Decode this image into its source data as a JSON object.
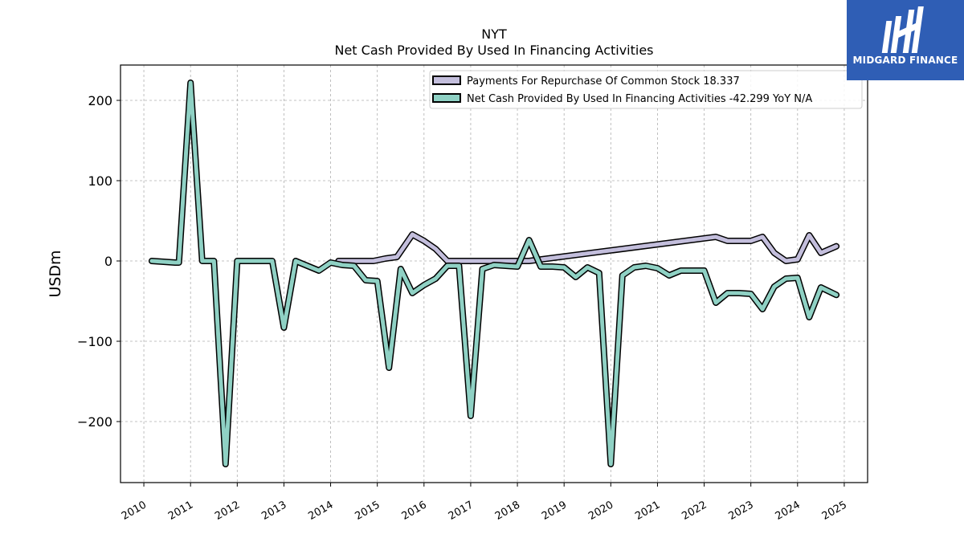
{
  "logo": {
    "text": "MIDGARD FINANCE"
  },
  "chart_data": {
    "type": "line",
    "title": "NYT",
    "subtitle": "Net Cash Provided By Used In Financing Activities",
    "xlabel": "",
    "ylabel": "USDm",
    "xlim": [
      2009.5,
      2025.5
    ],
    "ylim": [
      -276,
      244
    ],
    "xticks": [
      "2010",
      "2011",
      "2012",
      "2013",
      "2014",
      "2015",
      "2016",
      "2017",
      "2018",
      "2019",
      "2020",
      "2021",
      "2022",
      "2023",
      "2024",
      "2025"
    ],
    "yticks": [
      -200,
      -100,
      0,
      100,
      200
    ],
    "ytick_labels": [
      "−200",
      "−100",
      "0",
      "100",
      "200"
    ],
    "grid": true,
    "legend_position": "top-right",
    "series": [
      {
        "name": "Payments For Repurchase Of Common Stock",
        "legend_label": "Payments For Repurchase Of Common Stock  18.337",
        "color": "#c3bedc",
        "x": [
          2014.17,
          2014.42,
          2014.67,
          2014.92,
          2015.17,
          2015.42,
          2015.75,
          2016.0,
          2016.25,
          2016.5,
          2016.75,
          2017.0,
          2017.25,
          2017.5,
          2017.75,
          2018.0,
          2018.25,
          2022.25,
          2022.5,
          2022.75,
          2023.0,
          2023.25,
          2023.5,
          2023.75,
          2024.0,
          2024.25,
          2024.5,
          2024.83
        ],
        "y": [
          0,
          0,
          0,
          0,
          3,
          5,
          33,
          25,
          15,
          0,
          0,
          0,
          0,
          0,
          0,
          0,
          0,
          30,
          25,
          25,
          25,
          30,
          10,
          0,
          2,
          32,
          10,
          18.337
        ]
      },
      {
        "name": "Net Cash Provided By Used In Financing Activities",
        "legend_label": "Net Cash Provided By Used In Financing Activities  -42.299 YoY N/A",
        "color": "#8fd1c4",
        "x": [
          2010.17,
          2010.42,
          2010.67,
          2010.75,
          2011.0,
          2011.25,
          2011.5,
          2011.75,
          2012.0,
          2012.25,
          2012.5,
          2012.75,
          2013.0,
          2013.25,
          2013.5,
          2013.75,
          2014.0,
          2014.25,
          2014.5,
          2014.75,
          2015.0,
          2015.25,
          2015.5,
          2015.75,
          2016.0,
          2016.25,
          2016.5,
          2016.75,
          2017.0,
          2017.25,
          2017.5,
          2017.75,
          2018.0,
          2018.25,
          2018.5,
          2018.75,
          2019.0,
          2019.25,
          2019.5,
          2019.75,
          2020.0,
          2020.25,
          2020.5,
          2020.75,
          2021.0,
          2021.25,
          2021.5,
          2021.75,
          2022.0,
          2022.25,
          2022.5,
          2022.75,
          2023.0,
          2023.25,
          2023.5,
          2023.75,
          2024.0,
          2024.25,
          2024.5,
          2024.83
        ],
        "y": [
          0,
          -1,
          -2,
          -2,
          222,
          0,
          0,
          -253,
          0,
          0,
          0,
          0,
          -83,
          0,
          -6,
          -12,
          -2,
          -5,
          -6,
          -24,
          -25,
          -133,
          -10,
          -40,
          -30,
          -22,
          -6,
          -6,
          -193,
          -10,
          -5,
          -6,
          -7,
          26,
          -7,
          -7,
          -8,
          -20,
          -8,
          -15,
          -253,
          -18,
          -8,
          -6,
          -9,
          -18,
          -12,
          -12,
          -12,
          -52,
          -40,
          -40,
          -41,
          -60,
          -32,
          -22,
          -21,
          -70,
          -33,
          -42.299
        ]
      }
    ]
  }
}
